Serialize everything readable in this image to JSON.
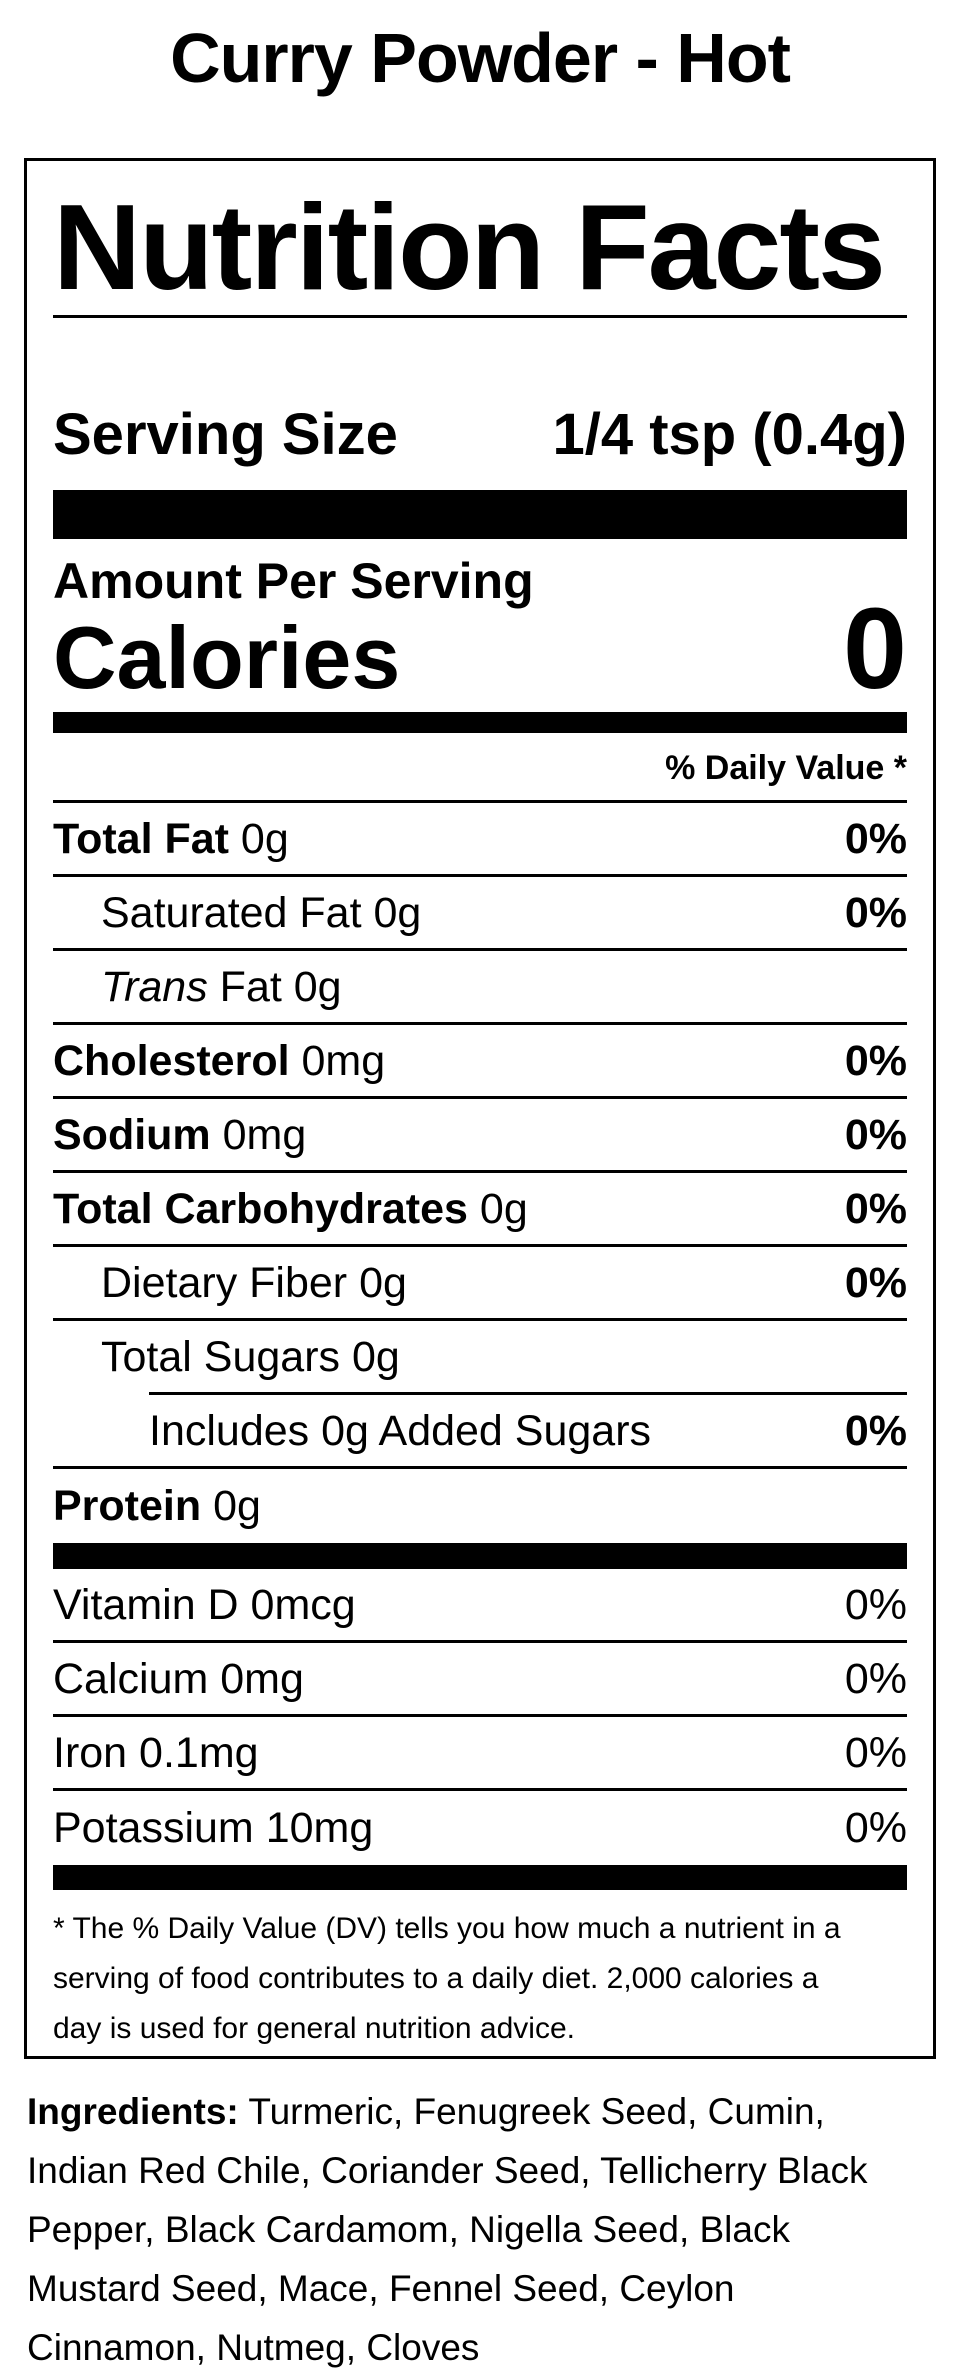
{
  "title": "Curry Powder - Hot",
  "colors": {
    "ink": "#000000",
    "paper": "#ffffff"
  },
  "label": {
    "heading": "Nutrition Facts",
    "serving_label": "Serving Size",
    "serving_value": "1/4 tsp (0.4g)",
    "amount_per_serving": "Amount Per Serving",
    "calories_label": "Calories",
    "calories_value": "0",
    "daily_value_header": "% Daily Value *",
    "rows": [
      {
        "parts": [
          {
            "style": "bold",
            "text": "Total Fat"
          },
          {
            "style": "normal",
            "text": " 0g"
          }
        ],
        "dv": "0%",
        "dv_bold": true,
        "indent": 0,
        "sep": "full"
      },
      {
        "parts": [
          {
            "style": "normal",
            "text": "Saturated Fat 0g"
          }
        ],
        "dv": "0%",
        "dv_bold": true,
        "indent": 1,
        "sep": "full"
      },
      {
        "parts": [
          {
            "style": "italic",
            "text": "Trans"
          },
          {
            "style": "normal",
            "text": " Fat 0g"
          }
        ],
        "dv": "",
        "dv_bold": false,
        "indent": 1,
        "sep": "full"
      },
      {
        "parts": [
          {
            "style": "bold",
            "text": "Cholesterol"
          },
          {
            "style": "normal",
            "text": " 0mg"
          }
        ],
        "dv": "0%",
        "dv_bold": true,
        "indent": 0,
        "sep": "full"
      },
      {
        "parts": [
          {
            "style": "bold",
            "text": "Sodium"
          },
          {
            "style": "normal",
            "text": " 0mg"
          }
        ],
        "dv": "0%",
        "dv_bold": true,
        "indent": 0,
        "sep": "full"
      },
      {
        "parts": [
          {
            "style": "bold",
            "text": "Total Carbohydrates"
          },
          {
            "style": "normal",
            "text": " 0g"
          }
        ],
        "dv": "0%",
        "dv_bold": true,
        "indent": 0,
        "sep": "full"
      },
      {
        "parts": [
          {
            "style": "normal",
            "text": "Dietary Fiber 0g"
          }
        ],
        "dv": "0%",
        "dv_bold": true,
        "indent": 1,
        "sep": "full"
      },
      {
        "parts": [
          {
            "style": "normal",
            "text": "Total Sugars 0g"
          }
        ],
        "dv": "",
        "dv_bold": false,
        "indent": 1,
        "sep": "indent"
      },
      {
        "parts": [
          {
            "style": "normal",
            "text": "Includes 0g Added Sugars"
          }
        ],
        "dv": "0%",
        "dv_bold": true,
        "indent": 2,
        "sep": "full"
      },
      {
        "parts": [
          {
            "style": "bold",
            "text": "Protein"
          },
          {
            "style": "normal",
            "text": " 0g"
          }
        ],
        "dv": "",
        "dv_bold": false,
        "indent": 0,
        "sep": "none"
      }
    ],
    "micronutrient_rows": [
      {
        "parts": [
          {
            "style": "normal",
            "text": "Vitamin D 0mcg"
          }
        ],
        "dv": "0%",
        "dv_bold": false,
        "indent": 0,
        "sep": "full"
      },
      {
        "parts": [
          {
            "style": "normal",
            "text": "Calcium 0mg"
          }
        ],
        "dv": "0%",
        "dv_bold": false,
        "indent": 0,
        "sep": "full"
      },
      {
        "parts": [
          {
            "style": "normal",
            "text": "Iron 0.1mg"
          }
        ],
        "dv": "0%",
        "dv_bold": false,
        "indent": 0,
        "sep": "full"
      },
      {
        "parts": [
          {
            "style": "normal",
            "text": "Potassium 10mg"
          }
        ],
        "dv": "0%",
        "dv_bold": false,
        "indent": 0,
        "sep": "none"
      }
    ],
    "footnote_lines": [
      "* The % Daily Value (DV) tells you how much a nutrient in a",
      "serving of food contributes to a daily diet. 2,000 calories a",
      "day is used for general nutrition advice."
    ]
  },
  "ingredients": {
    "label": "Ingredients:",
    "lines": [
      "Turmeric, Fenugreek Seed, Cumin,",
      "Indian Red Chile, Coriander Seed, Tellicherry Black",
      "Pepper, Black Cardamom, Nigella Seed, Black",
      "Mustard Seed, Mace, Fennel Seed, Ceylon",
      "Cinnamon, Nutmeg, Cloves"
    ]
  }
}
